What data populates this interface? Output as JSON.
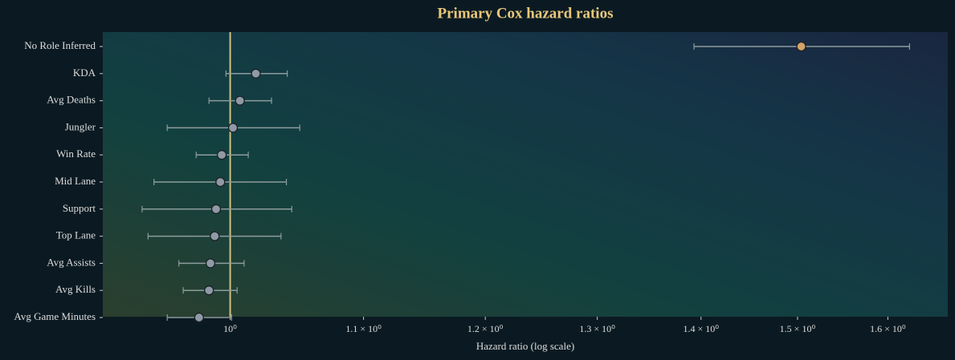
{
  "chart_data": {
    "type": "forest",
    "title": "Primary Cox hazard ratios",
    "xlabel": "Hazard ratio (log scale)",
    "xscale": "log",
    "categories": [
      "No Role Inferred",
      "KDA",
      "Avg Deaths",
      "Jungler",
      "Win Rate",
      "Mid Lane",
      "Support",
      "Top Lane",
      "Avg Assists",
      "Avg Kills",
      "Avg Game Minutes"
    ],
    "series": [
      {
        "values": [
          1.504,
          1.0185,
          1.007,
          1.002,
          0.994,
          0.993,
          0.99,
          0.989,
          0.986,
          0.985,
          0.978
        ],
        "lower": [
          1.393,
          0.997,
          0.985,
          0.956,
          0.976,
          0.947,
          0.939,
          0.943,
          0.964,
          0.967,
          0.956
        ],
        "upper": [
          1.625,
          1.0416,
          1.03,
          1.051,
          1.013,
          1.041,
          1.045,
          1.037,
          1.01,
          1.005,
          1.001
        ],
        "point_colors": [
          "#d4a36a",
          "#8f9aa6",
          "#8f9aa6",
          "#8f9aa6",
          "#8f9aa6",
          "#8f9aa6",
          "#8f9aa6",
          "#8f9aa6",
          "#8f9aa6",
          "#8f9aa6",
          "#8f9aa6"
        ],
        "error_color": "#8e9c9c"
      }
    ],
    "reference_line": 1,
    "reference_color": "#cfc27e",
    "xlim": [
      0.913,
      1.67
    ],
    "xticks": [
      {
        "value": 1,
        "label": "10⁰"
      },
      {
        "value": 1.1,
        "label": "1.1 × 10⁰"
      },
      {
        "value": 1.2,
        "label": "1.2 × 10⁰"
      },
      {
        "value": 1.3,
        "label": "1.3 × 10⁰"
      },
      {
        "value": 1.4,
        "label": "1.4 × 10⁰"
      },
      {
        "value": 1.5,
        "label": "1.5 × 10⁰"
      },
      {
        "value": 1.6,
        "label": "1.6 × 10⁰"
      }
    ]
  }
}
